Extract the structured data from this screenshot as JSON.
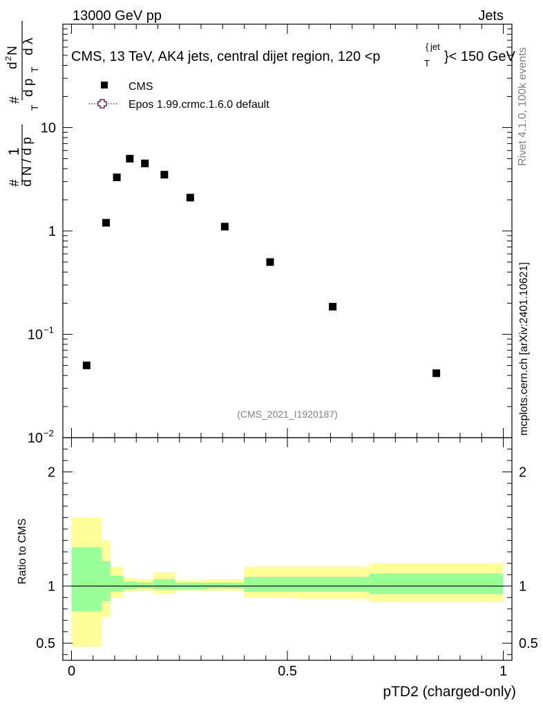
{
  "header": {
    "left": "13000 GeV pp",
    "right": "Jets"
  },
  "side": {
    "rivet": "Rivet 4.1.0,  100k events",
    "mcplots": "mcplots.cern.ch [arXiv:2401.10621]"
  },
  "title_text": "CMS, 13 TeV, AK4 jets, central dijet region, 120 <p",
  "title_sub": "T",
  "title_sup": "jet",
  "title_tail": "}< 150 GeV",
  "title_brace": "{",
  "legend": {
    "data_label": "CMS",
    "mc_label": "Epos 1.99.crmc.1.6.0 default"
  },
  "watermark": "(CMS_2021_I1920187)",
  "y_axis_label": {
    "hash": "#",
    "one": "1",
    "denom": "d N / d p",
    "t": "T",
    "hash2": "#",
    "dp": "d p",
    "dl": "d λ",
    "num": "d",
    "sq": "2",
    "N": "N"
  },
  "ratio_y_label": "Ratio to CMS",
  "x_axis_label": "pTD2 (charged-only)",
  "colors": {
    "band_outer": "#ffff99",
    "band_inner": "#99ff99",
    "mc": "#7f1f4c"
  },
  "chart_data": [
    {
      "type": "scatter",
      "panel": "main",
      "yscale": "log",
      "xlim": [
        -0.02,
        1.02
      ],
      "ylim": [
        0.01,
        100
      ],
      "yticks": [
        {
          "v": 0.01,
          "base": "10",
          "exp": "−2"
        },
        {
          "v": 0.1,
          "base": "10",
          "exp": "−1"
        },
        {
          "v": 1,
          "label": "1"
        },
        {
          "v": 10,
          "label": "10"
        }
      ],
      "series": [
        {
          "name": "CMS",
          "x": [
            0.035,
            0.08,
            0.105,
            0.135,
            0.17,
            0.215,
            0.275,
            0.355,
            0.46,
            0.605,
            0.845
          ],
          "y": [
            0.05,
            1.2,
            3.3,
            5.0,
            4.5,
            3.5,
            2.1,
            1.1,
            0.5,
            0.185,
            0.042
          ]
        }
      ],
      "legend_position": "top-left"
    },
    {
      "type": "area",
      "panel": "ratio",
      "ylim": [
        0.35,
        2.3
      ],
      "yticks": [
        0.5,
        1,
        2
      ],
      "xticks": [
        0,
        0.5,
        1
      ],
      "bins": [
        0,
        0.07,
        0.09,
        0.12,
        0.15,
        0.19,
        0.24,
        0.31,
        0.4,
        0.52,
        0.69,
        1.0
      ],
      "outer_lo": [
        0.47,
        0.73,
        0.9,
        0.95,
        0.96,
        0.93,
        0.96,
        0.96,
        0.9,
        0.89,
        0.86
      ],
      "outer_hi": [
        1.6,
        1.4,
        1.17,
        1.07,
        1.06,
        1.12,
        1.05,
        1.06,
        1.17,
        1.17,
        1.2
      ],
      "inner_lo": [
        0.78,
        0.87,
        0.95,
        0.97,
        0.98,
        0.97,
        0.97,
        0.98,
        0.95,
        0.95,
        0.93
      ],
      "inner_hi": [
        1.34,
        1.22,
        1.09,
        1.04,
        1.03,
        1.06,
        1.03,
        1.03,
        1.08,
        1.08,
        1.11
      ],
      "reference_line": 1
    }
  ]
}
